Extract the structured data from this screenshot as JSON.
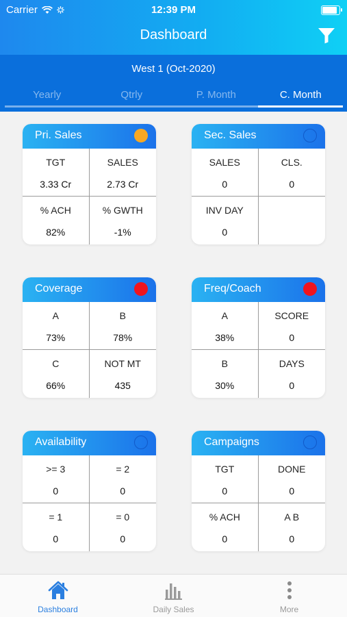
{
  "status": {
    "carrier": "Carrier",
    "time": "12:39 PM"
  },
  "header": {
    "title": "Dashboard",
    "filter_icon": "filter-icon"
  },
  "region": "West 1 (Oct-2020)",
  "tabs": [
    {
      "label": "Yearly",
      "active": false
    },
    {
      "label": "Qtrly",
      "active": false
    },
    {
      "label": "P. Month",
      "active": false
    },
    {
      "label": "C. Month",
      "active": true
    }
  ],
  "colors": {
    "orange": "#f7a823",
    "red": "#f0141e",
    "accent": "#1b72ea"
  },
  "cards": {
    "pri_sales": {
      "title": "Pri. Sales",
      "indicator": "orange",
      "cells": [
        {
          "label": "TGT",
          "value": "3.33 Cr"
        },
        {
          "label": "SALES",
          "value": "2.73 Cr"
        },
        {
          "label": "% ACH",
          "value": "82%"
        },
        {
          "label": "% GWTH",
          "value": "-1%"
        }
      ]
    },
    "sec_sales": {
      "title": "Sec. Sales",
      "indicator": "empty",
      "cells": [
        {
          "label": "SALES",
          "value": "0"
        },
        {
          "label": "CLS.",
          "value": "0"
        },
        {
          "label": "INV DAY",
          "value": "0"
        },
        {
          "label": "",
          "value": ""
        }
      ]
    },
    "coverage": {
      "title": "Coverage",
      "indicator": "red",
      "cells": [
        {
          "label": "A",
          "value": "73%"
        },
        {
          "label": "B",
          "value": "78%"
        },
        {
          "label": "C",
          "value": "66%"
        },
        {
          "label": "NOT MT",
          "value": "435"
        }
      ]
    },
    "freq_coach": {
      "title": "Freq/Coach",
      "indicator": "red",
      "cells": [
        {
          "label": "A",
          "value": "38%"
        },
        {
          "label": "SCORE",
          "value": "0"
        },
        {
          "label": "B",
          "value": "30%"
        },
        {
          "label": "DAYS",
          "value": "0"
        }
      ]
    },
    "availability": {
      "title": "Availability",
      "indicator": "empty",
      "cells": [
        {
          "label": ">= 3",
          "value": "0"
        },
        {
          "label": "= 2",
          "value": "0"
        },
        {
          "label": "= 1",
          "value": "0"
        },
        {
          "label": "= 0",
          "value": "0"
        }
      ]
    },
    "campaigns": {
      "title": "Campaigns",
      "indicator": "empty",
      "cells": [
        {
          "label": "TGT",
          "value": "0"
        },
        {
          "label": "DONE",
          "value": "0"
        },
        {
          "label": "% ACH",
          "value": "0"
        },
        {
          "label": "A B",
          "value": "0"
        }
      ]
    }
  },
  "bottom_nav": [
    {
      "label": "Dashboard",
      "icon": "home-icon",
      "active": true
    },
    {
      "label": "Daily Sales",
      "icon": "bar-chart-icon",
      "active": false
    },
    {
      "label": "More",
      "icon": "more-vertical-icon",
      "active": false
    }
  ]
}
